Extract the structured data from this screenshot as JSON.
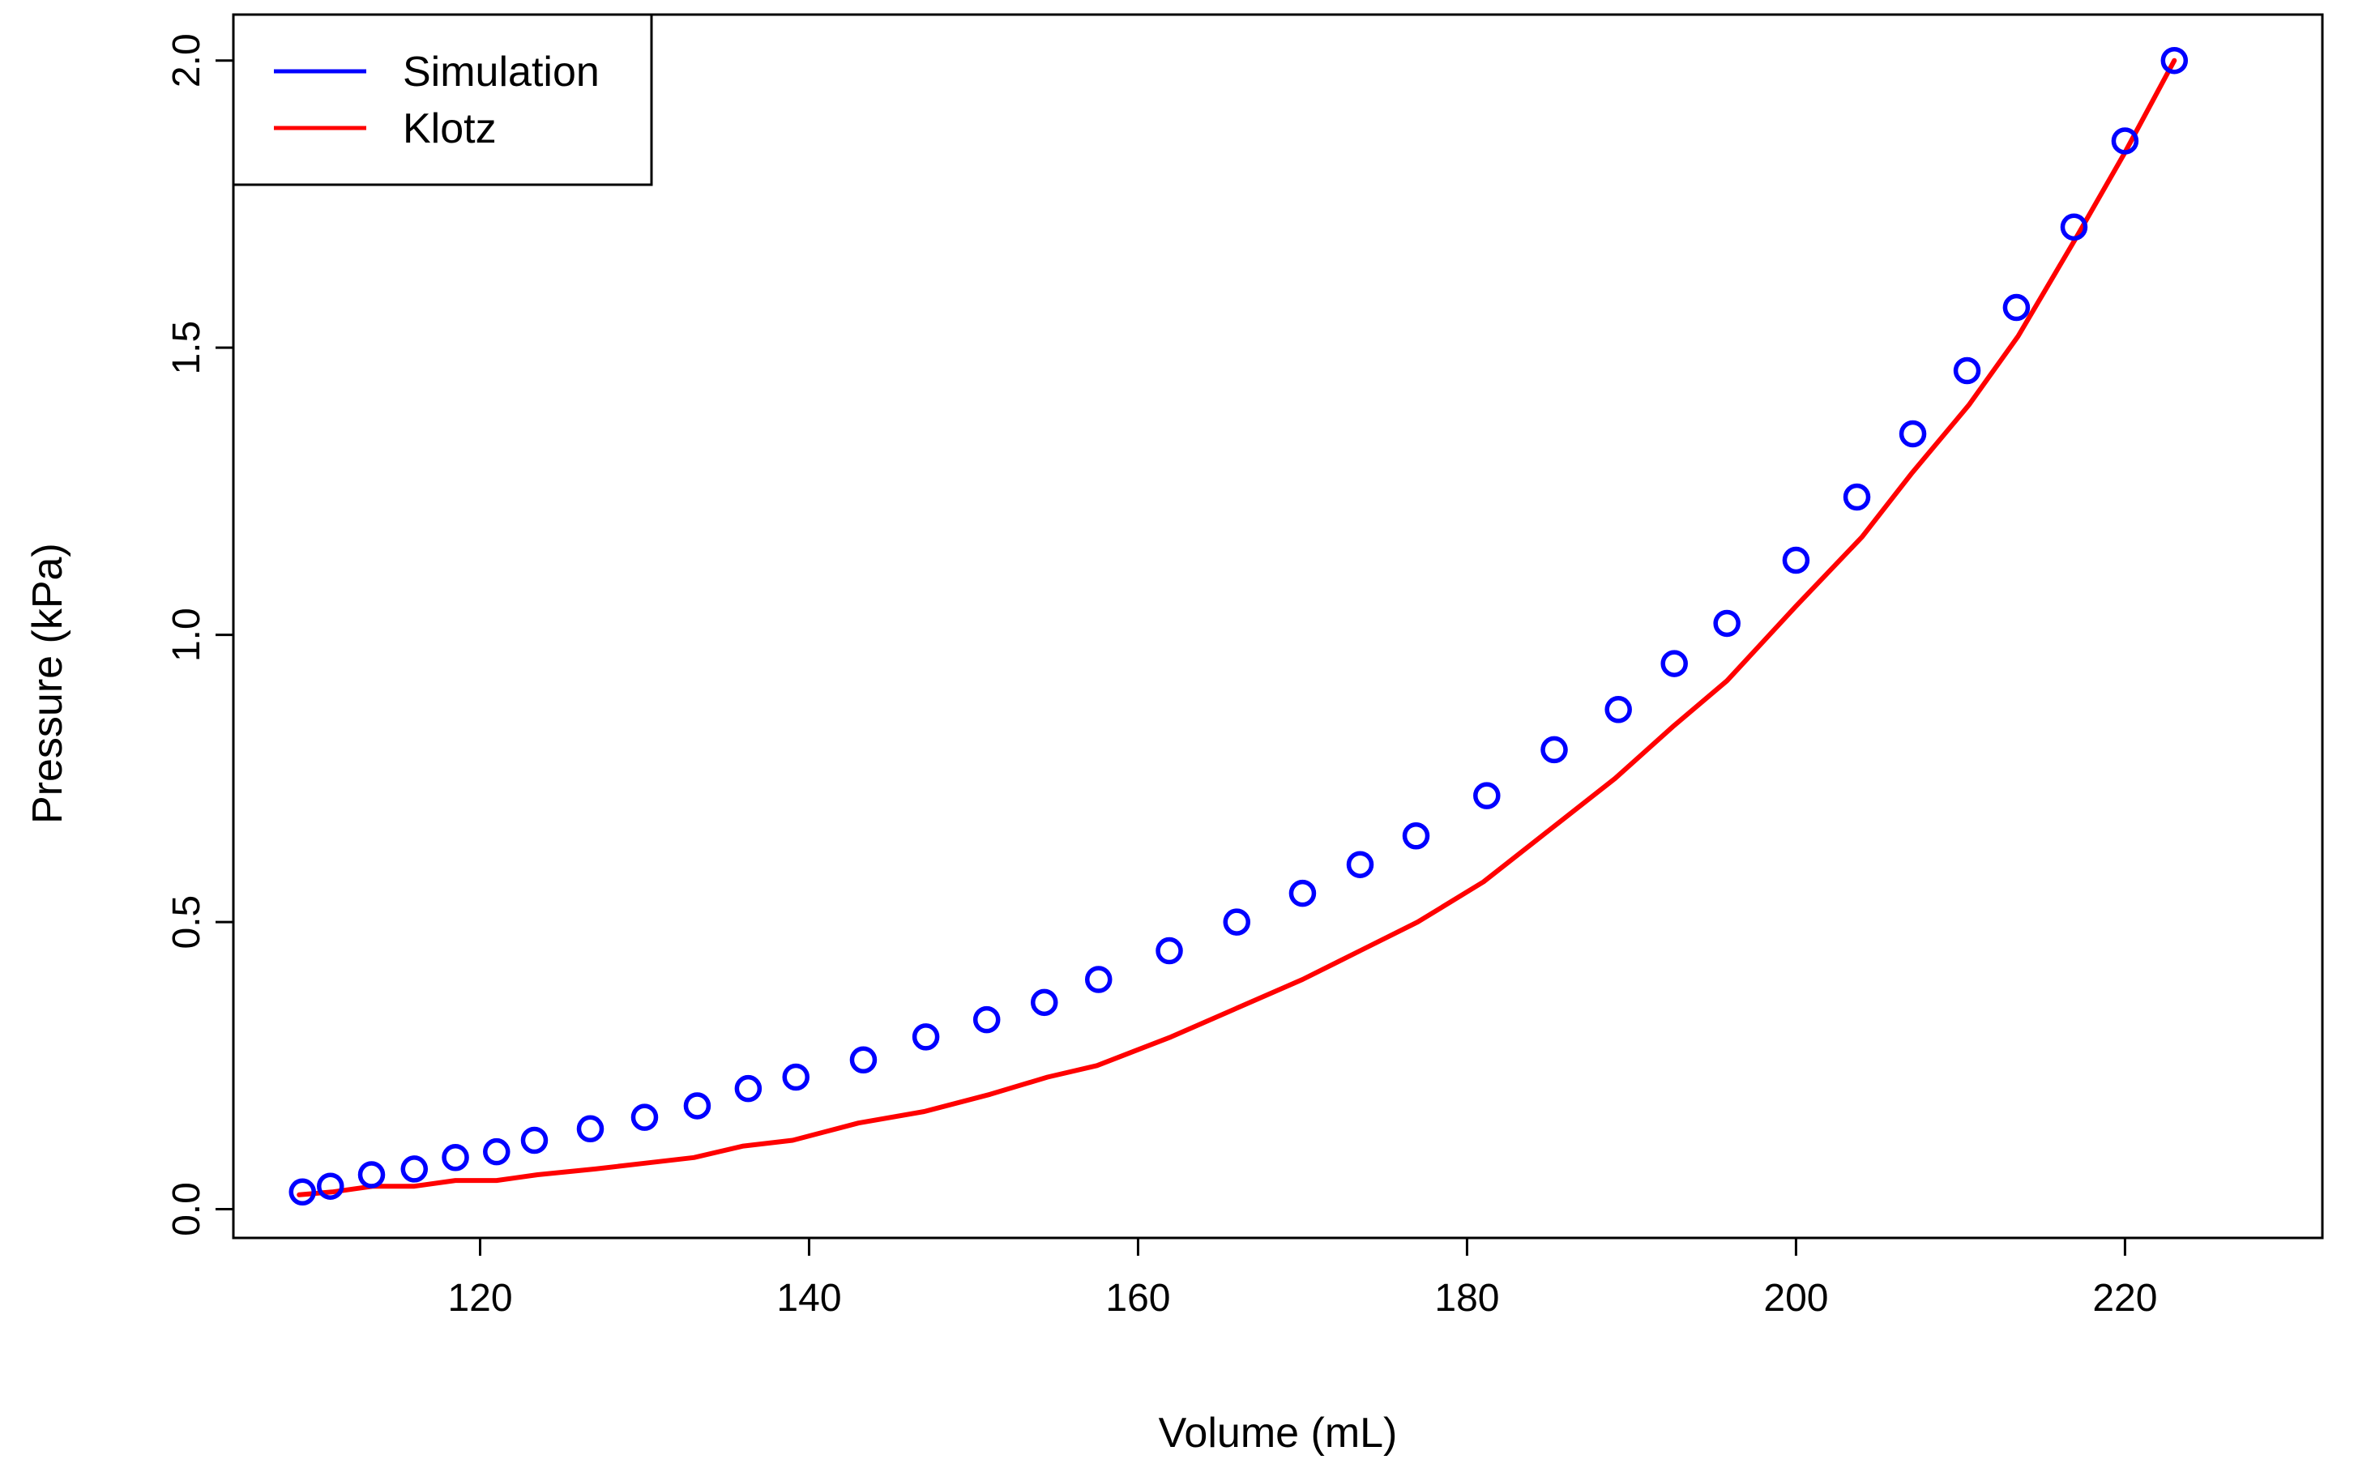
{
  "chart_data": {
    "type": "scatter",
    "title": "",
    "xlabel": "Volume (mL)",
    "ylabel": "Pressure (kPa)",
    "xlim": [
      105,
      232
    ],
    "ylim": [
      -0.05,
      2.08
    ],
    "x_ticks": [
      120,
      140,
      160,
      180,
      200,
      220
    ],
    "x_tick_labels": [
      "120",
      "140",
      "160",
      "180",
      "200",
      "220"
    ],
    "y_ticks": [
      0.0,
      0.5,
      1.0,
      1.5,
      2.0
    ],
    "y_tick_labels": [
      "0.0",
      "0.5",
      "1.0",
      "1.5",
      "2.0"
    ],
    "legend": {
      "placement": "top-left",
      "entries": [
        {
          "label": "Simulation",
          "color": "#0000ff"
        },
        {
          "label": "Klotz",
          "color": "#ff0000"
        }
      ]
    },
    "series": [
      {
        "name": "Simulation",
        "style": "points",
        "marker": "open-circle",
        "color": "#0000ff",
        "x": [
          109.2,
          110.9,
          113.4,
          116.0,
          118.5,
          121.0,
          123.3,
          126.7,
          130.0,
          133.2,
          136.3,
          139.2,
          143.3,
          147.1,
          150.8,
          154.3,
          157.6,
          161.9,
          166.0,
          170.0,
          173.5,
          176.9,
          181.2,
          185.3,
          189.2,
          192.6,
          195.8,
          200.0,
          203.7,
          207.1,
          210.4,
          213.4,
          216.9,
          220.0,
          223.0
        ],
        "y": [
          0.03,
          0.04,
          0.06,
          0.07,
          0.09,
          0.1,
          0.12,
          0.14,
          0.16,
          0.18,
          0.21,
          0.23,
          0.26,
          0.3,
          0.33,
          0.36,
          0.4,
          0.45,
          0.5,
          0.55,
          0.6,
          0.65,
          0.72,
          0.8,
          0.87,
          0.95,
          1.02,
          1.13,
          1.24,
          1.35,
          1.46,
          1.57,
          1.71,
          1.86,
          2.0
        ]
      },
      {
        "name": "Klotz",
        "style": "line",
        "color": "#ff0000",
        "x": [
          109.0,
          111.0,
          113.5,
          116.0,
          118.5,
          121.0,
          123.5,
          127.0,
          130.0,
          133.0,
          136.0,
          139.0,
          143.0,
          147.0,
          151.0,
          154.5,
          157.5,
          162.0,
          166.0,
          170.0,
          173.5,
          177.0,
          181.0,
          185.0,
          189.0,
          192.5,
          195.8,
          200.0,
          204.0,
          207.0,
          210.5,
          213.5,
          217.0,
          220.0,
          223.0
        ],
        "y": [
          0.025,
          0.03,
          0.04,
          0.04,
          0.05,
          0.05,
          0.06,
          0.07,
          0.08,
          0.09,
          0.11,
          0.12,
          0.15,
          0.17,
          0.2,
          0.23,
          0.25,
          0.3,
          0.35,
          0.4,
          0.45,
          0.5,
          0.57,
          0.66,
          0.75,
          0.84,
          0.92,
          1.05,
          1.17,
          1.28,
          1.4,
          1.52,
          1.69,
          1.84,
          2.0
        ]
      }
    ]
  }
}
